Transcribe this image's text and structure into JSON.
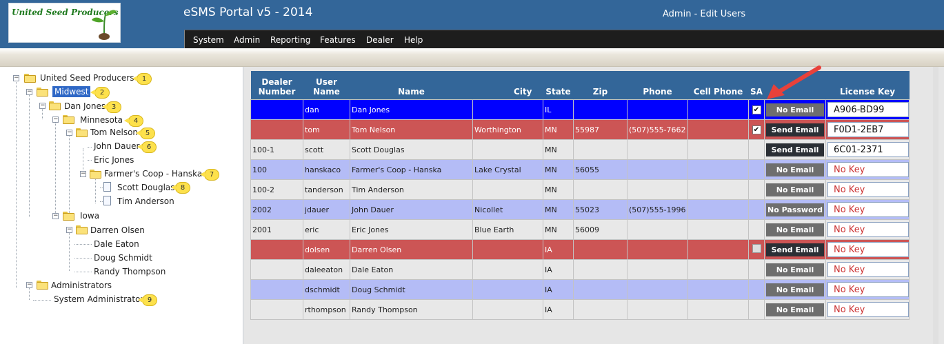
{
  "header": {
    "logo_text": "United Seed Producers",
    "app_title": "eSMS Portal v5 - 2014",
    "page_title": "Admin - Edit Users",
    "menu": [
      "System",
      "Admin",
      "Reporting",
      "Features",
      "Dealer",
      "Help"
    ]
  },
  "tree": {
    "root": "United Seed Producers",
    "midwest": "Midwest",
    "dan_jones": "Dan Jones",
    "minnesota": "Minnesota",
    "tom_nelson": "Tom Nelson",
    "john_dauer": "John Dauer",
    "eric_jones": "Eric Jones",
    "farmers_coop": "Farmer's Coop - Hanska",
    "scott_douglas": "Scott Douglas",
    "tim_anderson": "Tim Anderson",
    "iowa": "Iowa",
    "darren_olsen": "Darren Olsen",
    "dale_eaton": "Dale Eaton",
    "doug_schmidt": "Doug Schmidt",
    "randy_thompson": "Randy Thompson",
    "administrators": "Administrators",
    "system_admin": "System Administrator",
    "badges": [
      "1",
      "2",
      "3",
      "4",
      "5",
      "6",
      "7",
      "8",
      "9"
    ]
  },
  "table": {
    "headers": {
      "dealer_number": "Dealer Number",
      "user_name": "User Name",
      "name": "Name",
      "city": "City",
      "state": "State",
      "zip": "Zip",
      "phone": "Phone",
      "cell_phone": "Cell Phone",
      "sa": "SA",
      "license_key": "License Key"
    },
    "rows": [
      {
        "dealer": "",
        "user": "dan",
        "name": "Dan Jones",
        "city": "",
        "state": "IL",
        "zip": "",
        "phone": "",
        "cell": "",
        "sa": "checked",
        "button": "No Email",
        "key": "A906-BD99"
      },
      {
        "dealer": "",
        "user": "tom",
        "name": "Tom Nelson",
        "city": "Worthington",
        "state": "MN",
        "zip": "55987",
        "phone": "(507)555-7662",
        "cell": "",
        "sa": "checked",
        "button": "Send Email",
        "key": "F0D1-2EB7"
      },
      {
        "dealer": "100-1",
        "user": "scott",
        "name": "Scott Douglas",
        "city": "",
        "state": "MN",
        "zip": "",
        "phone": "",
        "cell": "",
        "sa": "",
        "button": "Send Email",
        "key": "6C01-2371"
      },
      {
        "dealer": "100",
        "user": "hanskaco",
        "name": "Farmer's Coop - Hanska",
        "city": "Lake Crystal",
        "state": "MN",
        "zip": "56055",
        "phone": "",
        "cell": "",
        "sa": "",
        "button": "No Email",
        "key": "No Key"
      },
      {
        "dealer": "100-2",
        "user": "tanderson",
        "name": "Tim Anderson",
        "city": "",
        "state": "MN",
        "zip": "",
        "phone": "",
        "cell": "",
        "sa": "",
        "button": "No Email",
        "key": "No Key"
      },
      {
        "dealer": "2002",
        "user": "jdauer",
        "name": "John Dauer",
        "city": "Nicollet",
        "state": "MN",
        "zip": "55023",
        "phone": "(507)555-1996",
        "cell": "",
        "sa": "",
        "button": "No Password",
        "key": "No Key"
      },
      {
        "dealer": "2001",
        "user": "eric",
        "name": "Eric Jones",
        "city": "Blue Earth",
        "state": "MN",
        "zip": "56009",
        "phone": "",
        "cell": "",
        "sa": "",
        "button": "No Email",
        "key": "No Key"
      },
      {
        "dealer": "",
        "user": "dolsen",
        "name": "Darren Olsen",
        "city": "",
        "state": "IA",
        "zip": "",
        "phone": "",
        "cell": "",
        "sa": "unchecked",
        "button": "Send Email",
        "key": "No Key"
      },
      {
        "dealer": "",
        "user": "daleeaton",
        "name": "Dale Eaton",
        "city": "",
        "state": "IA",
        "zip": "",
        "phone": "",
        "cell": "",
        "sa": "",
        "button": "No Email",
        "key": "No Key"
      },
      {
        "dealer": "",
        "user": "dschmidt",
        "name": "Doug Schmidt",
        "city": "",
        "state": "IA",
        "zip": "",
        "phone": "",
        "cell": "",
        "sa": "",
        "button": "No Email",
        "key": "No Key"
      },
      {
        "dealer": "",
        "user": "rthompson",
        "name": "Randy Thompson",
        "city": "",
        "state": "IA",
        "zip": "",
        "phone": "",
        "cell": "",
        "sa": "",
        "button": "No Email",
        "key": "No Key"
      }
    ]
  },
  "colors": {
    "header_blue": "#336699",
    "selected_row": "#0000ff",
    "red_row": "#cc5555",
    "lavender_row": "#b4bcf6",
    "badge_yellow": "#fde14c",
    "arrow_red": "#e8413a"
  }
}
